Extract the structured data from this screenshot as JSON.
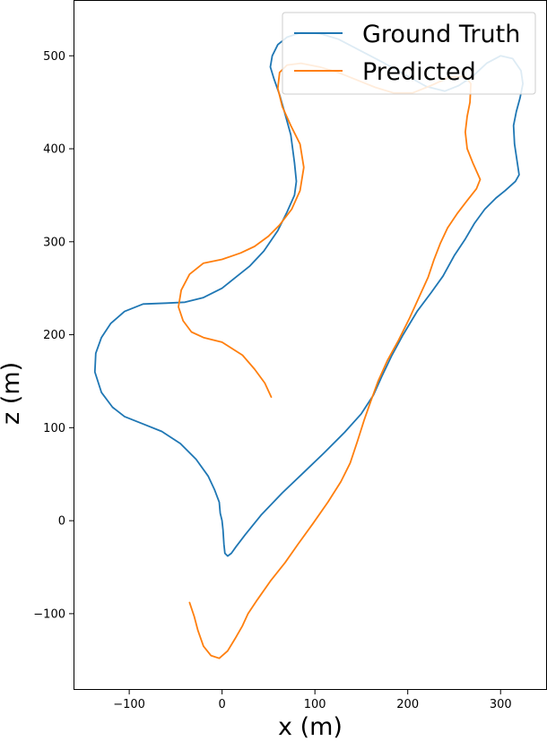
{
  "chart_data": {
    "type": "line",
    "xlabel": "x (m)",
    "ylabel": "z (m)",
    "xlim": [
      -160,
      350
    ],
    "ylim": [
      -182,
      560
    ],
    "x_ticks": [
      -100,
      0,
      100,
      200,
      300
    ],
    "x_tick_labels": [
      "−100",
      "0",
      "100",
      "200",
      "300"
    ],
    "y_ticks": [
      -100,
      0,
      100,
      200,
      300,
      400,
      500
    ],
    "y_tick_labels": [
      "−100",
      "0",
      "100",
      "200",
      "300",
      "400",
      "500"
    ],
    "grid": false,
    "legend_position": "top-right",
    "series": [
      {
        "name": "Ground Truth",
        "color": "#1f77b4",
        "points": [
          [
            -2,
            8
          ],
          [
            -3,
            20
          ],
          [
            -8,
            33
          ],
          [
            -15,
            48
          ],
          [
            -28,
            66
          ],
          [
            -45,
            83
          ],
          [
            -65,
            96
          ],
          [
            -85,
            104
          ],
          [
            -105,
            112
          ],
          [
            -118,
            122
          ],
          [
            -130,
            138
          ],
          [
            -137,
            160
          ],
          [
            -136,
            180
          ],
          [
            -130,
            197
          ],
          [
            -120,
            212
          ],
          [
            -105,
            225
          ],
          [
            -85,
            233
          ],
          [
            -60,
            234
          ],
          [
            -40,
            235
          ],
          [
            -20,
            240
          ],
          [
            0,
            250
          ],
          [
            15,
            262
          ],
          [
            30,
            274
          ],
          [
            45,
            290
          ],
          [
            60,
            312
          ],
          [
            70,
            332
          ],
          [
            78,
            350
          ],
          [
            80,
            365
          ],
          [
            78,
            385
          ],
          [
            74,
            415
          ],
          [
            68,
            437
          ],
          [
            62,
            458
          ],
          [
            56,
            475
          ],
          [
            52,
            488
          ],
          [
            54,
            500
          ],
          [
            60,
            512
          ],
          [
            70,
            520
          ],
          [
            85,
            525
          ],
          [
            105,
            524
          ],
          [
            125,
            518
          ],
          [
            150,
            505
          ],
          [
            175,
            492
          ],
          [
            200,
            478
          ],
          [
            220,
            467
          ],
          [
            240,
            462
          ],
          [
            255,
            468
          ],
          [
            270,
            478
          ],
          [
            285,
            492
          ],
          [
            300,
            500
          ],
          [
            313,
            497
          ],
          [
            322,
            484
          ],
          [
            324,
            470
          ],
          [
            321,
            455
          ],
          [
            317,
            440
          ],
          [
            314,
            425
          ],
          [
            315,
            405
          ],
          [
            318,
            385
          ],
          [
            320,
            372
          ],
          [
            316,
            365
          ],
          [
            305,
            355
          ],
          [
            295,
            347
          ],
          [
            283,
            335
          ],
          [
            272,
            320
          ],
          [
            262,
            303
          ],
          [
            250,
            285
          ],
          [
            238,
            263
          ],
          [
            225,
            245
          ],
          [
            210,
            225
          ],
          [
            195,
            200
          ],
          [
            183,
            178
          ],
          [
            172,
            155
          ],
          [
            163,
            135
          ],
          [
            150,
            115
          ],
          [
            132,
            95
          ],
          [
            110,
            73
          ],
          [
            88,
            52
          ],
          [
            65,
            30
          ],
          [
            42,
            6
          ],
          [
            25,
            -15
          ],
          [
            15,
            -28
          ],
          [
            10,
            -35
          ],
          [
            6,
            -38
          ],
          [
            3,
            -35
          ],
          [
            2,
            -25
          ],
          [
            1,
            -10
          ],
          [
            0,
            0
          ],
          [
            -2,
            8
          ]
        ]
      },
      {
        "name": "Predicted",
        "color": "#ff7f0e",
        "points": [
          [
            53,
            133
          ],
          [
            46,
            148
          ],
          [
            35,
            163
          ],
          [
            22,
            178
          ],
          [
            0,
            192
          ],
          [
            -20,
            197
          ],
          [
            -33,
            203
          ],
          [
            -42,
            215
          ],
          [
            -47,
            230
          ],
          [
            -44,
            248
          ],
          [
            -35,
            265
          ],
          [
            -20,
            277
          ],
          [
            0,
            281
          ],
          [
            20,
            288
          ],
          [
            35,
            295
          ],
          [
            50,
            306
          ],
          [
            62,
            318
          ],
          [
            75,
            335
          ],
          [
            84,
            355
          ],
          [
            88,
            380
          ],
          [
            84,
            405
          ],
          [
            74,
            425
          ],
          [
            65,
            445
          ],
          [
            60,
            465
          ],
          [
            62,
            482
          ],
          [
            70,
            490
          ],
          [
            85,
            492
          ],
          [
            105,
            488
          ],
          [
            125,
            482
          ],
          [
            145,
            474
          ],
          [
            165,
            466
          ],
          [
            185,
            460
          ],
          [
            205,
            460
          ],
          [
            225,
            468
          ],
          [
            245,
            477
          ],
          [
            262,
            478
          ],
          [
            268,
            470
          ],
          [
            267,
            450
          ],
          [
            264,
            435
          ],
          [
            262,
            418
          ],
          [
            264,
            400
          ],
          [
            270,
            385
          ],
          [
            278,
            367
          ],
          [
            274,
            357
          ],
          [
            263,
            343
          ],
          [
            253,
            330
          ],
          [
            243,
            315
          ],
          [
            235,
            298
          ],
          [
            228,
            280
          ],
          [
            222,
            262
          ],
          [
            212,
            240
          ],
          [
            202,
            218
          ],
          [
            190,
            194
          ],
          [
            178,
            172
          ],
          [
            168,
            150
          ],
          [
            160,
            128
          ],
          [
            153,
            108
          ],
          [
            146,
            86
          ],
          [
            138,
            62
          ],
          [
            128,
            42
          ],
          [
            114,
            20
          ],
          [
            98,
            -3
          ],
          [
            82,
            -25
          ],
          [
            68,
            -45
          ],
          [
            52,
            -65
          ],
          [
            38,
            -85
          ],
          [
            28,
            -100
          ],
          [
            22,
            -113
          ],
          [
            14,
            -127
          ],
          [
            6,
            -140
          ],
          [
            -3,
            -148
          ],
          [
            -12,
            -145
          ],
          [
            -20,
            -135
          ],
          [
            -26,
            -118
          ],
          [
            -30,
            -103
          ],
          [
            -35,
            -88
          ]
        ]
      }
    ]
  }
}
